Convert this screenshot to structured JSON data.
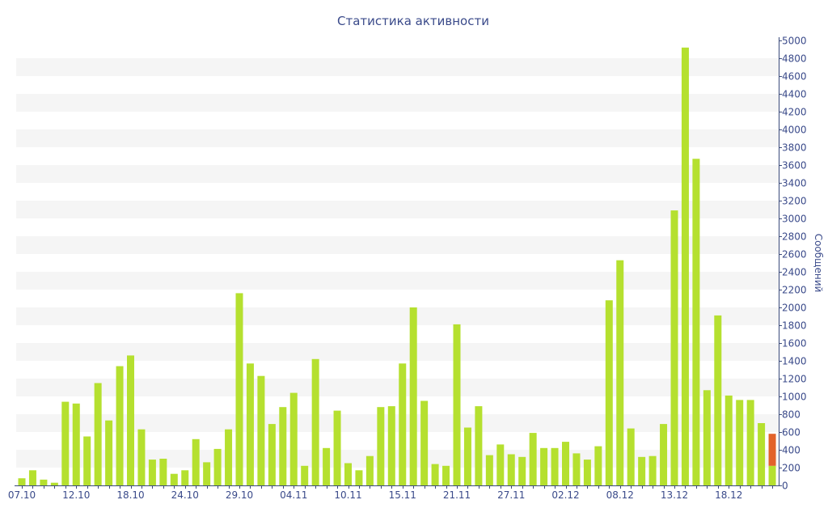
{
  "colors": {
    "bar": "#b5e02f",
    "bar_highlight": "#e2622a",
    "band": "#f5f5f5",
    "axis": "#3a4a7a",
    "text": "#3a4a8a"
  },
  "chart_data": {
    "type": "bar",
    "title": "Статистика активности",
    "xlabel": "",
    "ylabel": "Сообщений",
    "ylim": [
      0,
      5000
    ],
    "ytick_step": 200,
    "y_axis_position": "right",
    "grid": "alternating horizontal bands",
    "legend": "none",
    "x_ticks": [
      {
        "label": "07.10",
        "index": 0
      },
      {
        "label": "12.10",
        "index": 5
      },
      {
        "label": "18.10",
        "index": 10
      },
      {
        "label": "24.10",
        "index": 15
      },
      {
        "label": "29.10",
        "index": 20
      },
      {
        "label": "04.11",
        "index": 25
      },
      {
        "label": "10.11",
        "index": 30
      },
      {
        "label": "15.11",
        "index": 35
      },
      {
        "label": "21.11",
        "index": 40
      },
      {
        "label": "27.11",
        "index": 45
      },
      {
        "label": "02.12",
        "index": 50
      },
      {
        "label": "08.12",
        "index": 55
      },
      {
        "label": "13.12",
        "index": 60
      },
      {
        "label": "18.12",
        "index": 65
      }
    ],
    "values": [
      80,
      170,
      65,
      30,
      940,
      920,
      550,
      1150,
      730,
      1340,
      1460,
      630,
      290,
      300,
      130,
      170,
      520,
      260,
      410,
      630,
      2160,
      1370,
      1230,
      690,
      880,
      1040,
      220,
      1420,
      420,
      840,
      250,
      170,
      330,
      880,
      890,
      1370,
      2000,
      950,
      240,
      220,
      1810,
      650,
      890,
      340,
      460,
      350,
      320,
      590,
      420,
      420,
      490,
      360,
      290,
      440,
      2080,
      2530,
      640,
      320,
      330,
      690,
      3090,
      4920,
      3670,
      1070,
      1910,
      1010,
      960,
      960,
      700,
      580
    ],
    "highlight_index": 69
  }
}
